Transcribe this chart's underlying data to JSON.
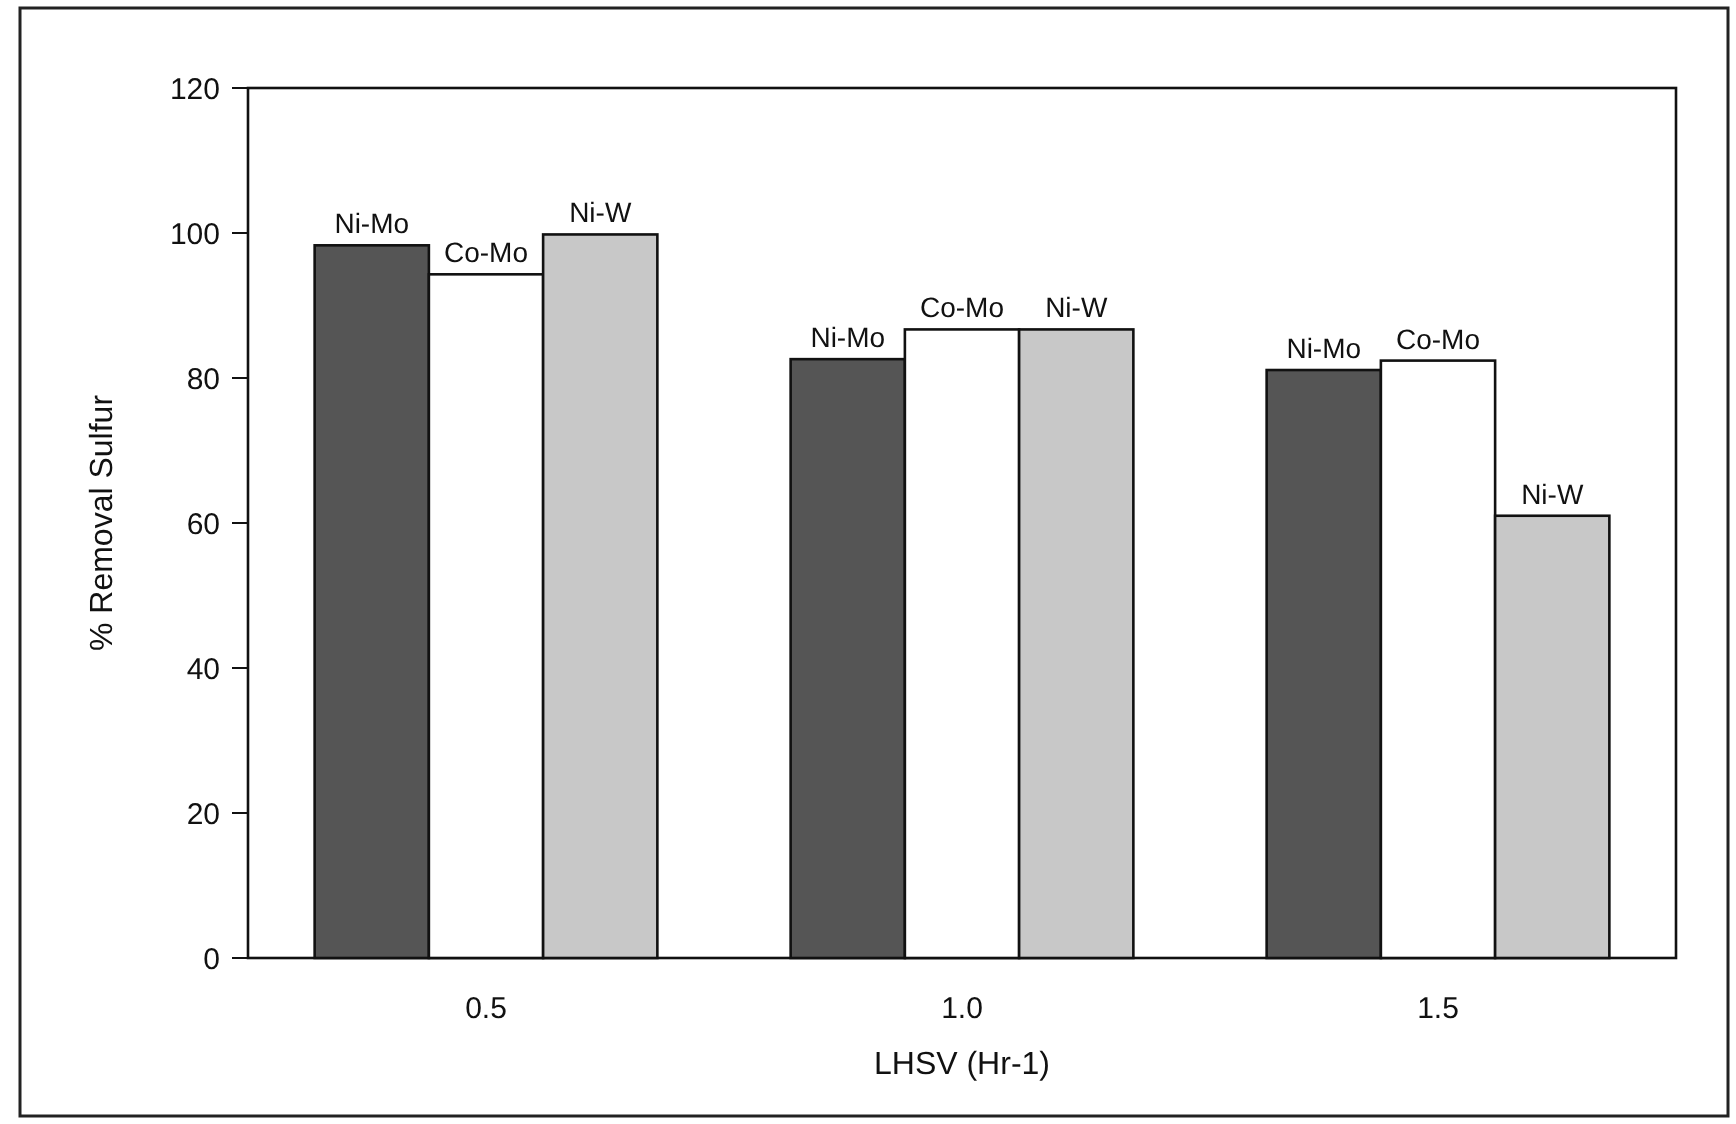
{
  "chart_data": {
    "type": "bar",
    "xlabel": "LHSV  (Hr-1)",
    "ylabel": "% Removal Sulfur",
    "categories": [
      "0.5",
      "1.0",
      "1.5"
    ],
    "series": [
      {
        "name": "Ni-Mo",
        "color": "#555555",
        "values": [
          98.3,
          82.6,
          81.1
        ]
      },
      {
        "name": "Co-Mo",
        "color": "#ffffff",
        "values": [
          94.3,
          86.7,
          82.4
        ]
      },
      {
        "name": "Ni-W",
        "color": "#c8c8c8",
        "values": [
          99.8,
          86.7,
          61
        ]
      }
    ],
    "ylim": [
      0,
      120
    ],
    "yticks": [
      0,
      20,
      40,
      60,
      80,
      100,
      120
    ],
    "grid": false
  }
}
